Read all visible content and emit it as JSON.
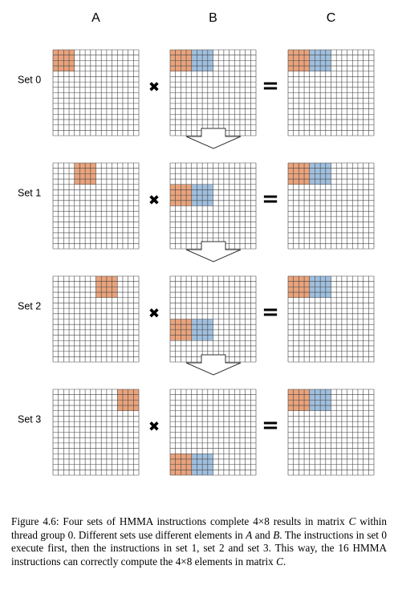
{
  "columns": [
    {
      "key": "A",
      "label": "A"
    },
    {
      "key": "B",
      "label": "B"
    },
    {
      "key": "C",
      "label": "C"
    }
  ],
  "grid": {
    "rows": 16,
    "cols": 16
  },
  "operators": {
    "multiply": "✖",
    "equals": "="
  },
  "colors": {
    "orange": "#e9a37c",
    "blue": "#9fbfdf",
    "line": "#444444",
    "arrow": "#333333"
  },
  "sets": [
    {
      "label": "Set 0",
      "A": [
        {
          "row": 0,
          "col": 0,
          "rows": 4,
          "cols": 4,
          "color": "orange"
        }
      ],
      "B": [
        {
          "row": 0,
          "col": 0,
          "rows": 4,
          "cols": 4,
          "color": "orange"
        },
        {
          "row": 0,
          "col": 4,
          "rows": 4,
          "cols": 4,
          "color": "blue"
        }
      ],
      "C": [
        {
          "row": 0,
          "col": 0,
          "rows": 4,
          "cols": 4,
          "color": "orange"
        },
        {
          "row": 0,
          "col": 4,
          "rows": 4,
          "cols": 4,
          "color": "blue"
        }
      ]
    },
    {
      "label": "Set 1",
      "A": [
        {
          "row": 0,
          "col": 4,
          "rows": 4,
          "cols": 4,
          "color": "orange"
        }
      ],
      "B": [
        {
          "row": 4,
          "col": 0,
          "rows": 4,
          "cols": 4,
          "color": "orange"
        },
        {
          "row": 4,
          "col": 4,
          "rows": 4,
          "cols": 4,
          "color": "blue"
        }
      ],
      "C": [
        {
          "row": 0,
          "col": 0,
          "rows": 4,
          "cols": 4,
          "color": "orange"
        },
        {
          "row": 0,
          "col": 4,
          "rows": 4,
          "cols": 4,
          "color": "blue"
        }
      ]
    },
    {
      "label": "Set 2",
      "A": [
        {
          "row": 0,
          "col": 8,
          "rows": 4,
          "cols": 4,
          "color": "orange"
        }
      ],
      "B": [
        {
          "row": 8,
          "col": 0,
          "rows": 4,
          "cols": 4,
          "color": "orange"
        },
        {
          "row": 8,
          "col": 4,
          "rows": 4,
          "cols": 4,
          "color": "blue"
        }
      ],
      "C": [
        {
          "row": 0,
          "col": 0,
          "rows": 4,
          "cols": 4,
          "color": "orange"
        },
        {
          "row": 0,
          "col": 4,
          "rows": 4,
          "cols": 4,
          "color": "blue"
        }
      ]
    },
    {
      "label": "Set 3",
      "A": [
        {
          "row": 0,
          "col": 12,
          "rows": 4,
          "cols": 4,
          "color": "orange"
        }
      ],
      "B": [
        {
          "row": 12,
          "col": 0,
          "rows": 4,
          "cols": 4,
          "color": "orange"
        },
        {
          "row": 12,
          "col": 4,
          "rows": 4,
          "cols": 4,
          "color": "blue"
        }
      ],
      "C": [
        {
          "row": 0,
          "col": 0,
          "rows": 4,
          "cols": 4,
          "color": "orange"
        },
        {
          "row": 0,
          "col": 4,
          "rows": 4,
          "cols": 4,
          "color": "blue"
        }
      ]
    }
  ],
  "caption": {
    "p1": "Figure 4.6: Four sets of HMMA instructions complete 4×8 results in matrix ",
    "v1": "C",
    "p2": " within thread group 0. Different sets use different elements in ",
    "v2": "A",
    "p3": " and ",
    "v3": "B",
    "p4": ". The instructions in set 0 execute first, then the instructions in set 1, set 2 and set 3. This way, the 16 HMMA instructions can correctly compute the 4×8 elements in matrix ",
    "v4": "C",
    "p5": "."
  }
}
